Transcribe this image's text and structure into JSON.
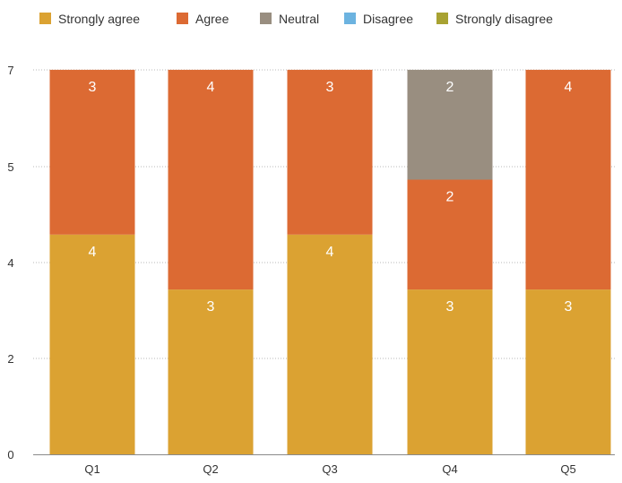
{
  "chart_data": {
    "type": "bar",
    "stacked": true,
    "title": "",
    "xlabel": "",
    "ylabel": "",
    "categories": [
      "Q1",
      "Q2",
      "Q3",
      "Q4",
      "Q5"
    ],
    "y_tick_labels": [
      "0",
      "2",
      "4",
      "5",
      "7"
    ],
    "y_range": [
      0,
      7
    ],
    "grid": true,
    "legend_position": "top-left",
    "series": [
      {
        "name": "Strongly agree",
        "color": "#DBA232",
        "values": [
          4,
          3,
          4,
          3,
          3
        ]
      },
      {
        "name": "Agree",
        "color": "#DC6A33",
        "values": [
          3,
          4,
          3,
          2,
          4
        ]
      },
      {
        "name": "Neutral",
        "color": "#998E80",
        "values": [
          0,
          0,
          0,
          2,
          0
        ]
      },
      {
        "name": "Disagree",
        "color": "#6CB3E0",
        "values": [
          0,
          0,
          0,
          0,
          0
        ]
      },
      {
        "name": "Strongly disagree",
        "color": "#A8A232",
        "values": [
          0,
          0,
          0,
          0,
          0
        ]
      }
    ]
  }
}
